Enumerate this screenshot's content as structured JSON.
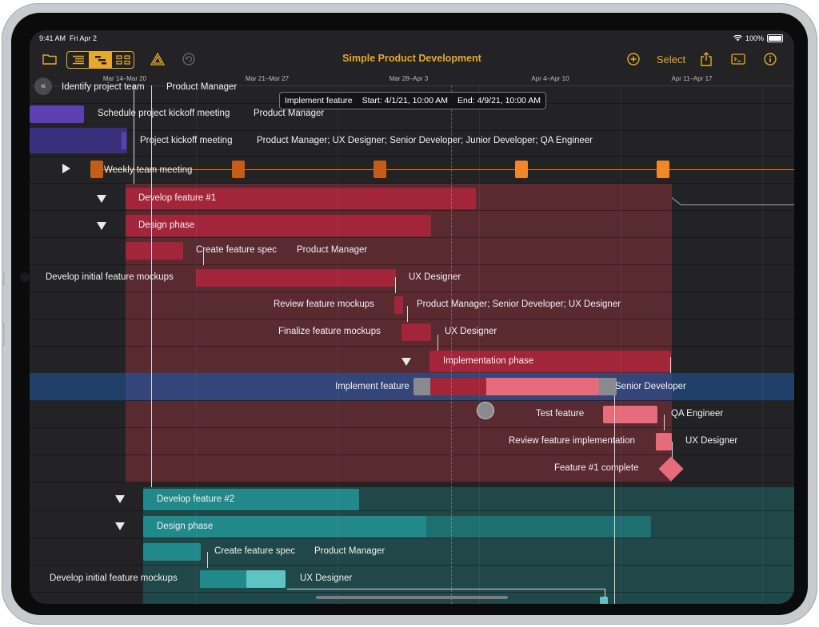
{
  "status_bar": {
    "time": "9:41 AM",
    "date": "Fri Apr 2",
    "battery": "100%"
  },
  "toolbar": {
    "title": "Simple Product Development",
    "select_label": "Select",
    "icons": [
      "folder-icon",
      "outline-view-icon",
      "gantt-view-icon",
      "network-view-icon",
      "level-icon",
      "undo-icon",
      "add-icon",
      "share-icon",
      "inspector-icon",
      "info-icon"
    ]
  },
  "timeline": {
    "weeks": [
      "Mar 14–Mar 20",
      "Mar 21–Mar 27",
      "Mar 28–Apr 3",
      "Apr 4–Apr 10",
      "Apr 11–Apr 17"
    ]
  },
  "tooltip": {
    "task": "Implement feature",
    "start": "Start: 4/1/21, 10:00 AM",
    "end": "End: 4/9/21, 10:00 AM"
  },
  "rows": [
    {
      "name": "Identify project team",
      "resources": "Product Manager"
    },
    {
      "name": "Schedule project kickoff meeting",
      "resources": "Product Manager"
    },
    {
      "name": "Project kickoff meeting",
      "resources": "Product Manager; UX Designer; Senior Developer; Junior Developer; QA Engineer"
    },
    {
      "name": "Weekly team meeting",
      "resources": ""
    },
    {
      "name": "Develop feature #1",
      "resources": ""
    },
    {
      "name": "Design phase",
      "resources": ""
    },
    {
      "name": "Create feature spec",
      "resources": "Product Manager"
    },
    {
      "name": "Develop initial feature mockups",
      "resources": "UX Designer"
    },
    {
      "name": "Review feature mockups",
      "resources": "Product Manager; Senior Developer; UX Designer"
    },
    {
      "name": "Finalize feature mockups",
      "resources": "UX Designer"
    },
    {
      "name": "Implementation phase",
      "resources": ""
    },
    {
      "name": "Implement feature",
      "resources": "Senior Developer"
    },
    {
      "name": "Test feature",
      "resources": "QA Engineer"
    },
    {
      "name": "Review feature implementation",
      "resources": "UX Designer"
    },
    {
      "name": "Feature #1 complete",
      "resources": ""
    },
    {
      "name": "Develop feature #2",
      "resources": ""
    },
    {
      "name": "Design phase",
      "resources": ""
    },
    {
      "name": "Create feature spec",
      "resources": "Product Manager"
    },
    {
      "name": "Develop initial feature mockups",
      "resources": "UX Designer"
    }
  ],
  "colors": {
    "accent": "#e6a92b",
    "feature1": "#a3253a",
    "feature1_bg": "#5c2a31",
    "feature2": "#22898a",
    "feature2_bg": "#214a4b",
    "kickoff": "#5b3fb3",
    "meeting": "#e67d25",
    "selected_row": "#20406a"
  }
}
